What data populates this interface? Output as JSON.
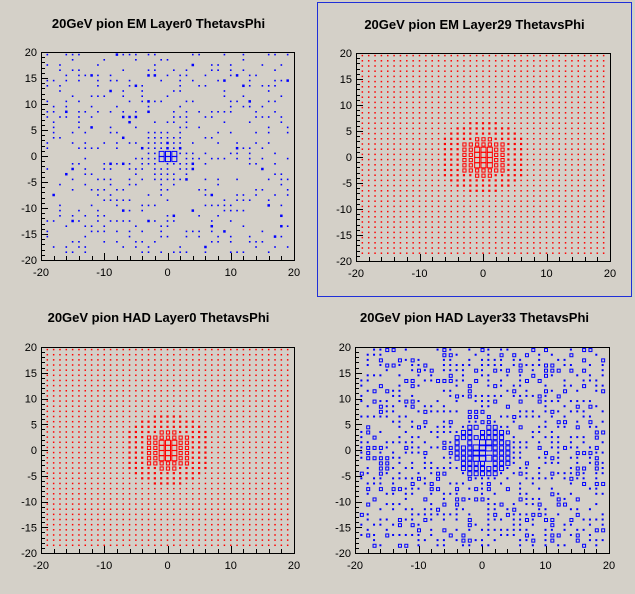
{
  "pads": [
    {
      "title": "20GeV pion EM Layer0 ThetavsPhi",
      "selected": false,
      "chart_data": {
        "type": "scatter",
        "style": "box",
        "color": "#0000ff",
        "density": "sparse",
        "xlim": [
          -20,
          20
        ],
        "ylim": [
          -20,
          20
        ],
        "xticks": [
          -20,
          -10,
          0,
          10,
          20
        ],
        "yticks": [
          -20,
          -15,
          -10,
          -5,
          0,
          5,
          10,
          15,
          20
        ],
        "grid": false
      }
    },
    {
      "title": "20GeV pion EM Layer29 ThetavsPhi",
      "selected": true,
      "chart_data": {
        "type": "scatter",
        "style": "box",
        "color": "#ff0000",
        "density": "full",
        "xlim": [
          -20,
          20
        ],
        "ylim": [
          -20,
          20
        ],
        "xticks": [
          -20,
          -10,
          0,
          10,
          20
        ],
        "yticks": [
          -20,
          -15,
          -10,
          -5,
          0,
          5,
          10,
          15,
          20
        ],
        "grid": false
      }
    },
    {
      "title": "20GeV pion HAD Layer0 ThetavsPhi",
      "selected": false,
      "chart_data": {
        "type": "scatter",
        "style": "box",
        "color": "#ff0000",
        "density": "full",
        "xlim": [
          -20,
          20
        ],
        "ylim": [
          -20,
          20
        ],
        "xticks": [
          -20,
          -10,
          0,
          10,
          20
        ],
        "yticks": [
          -20,
          -15,
          -10,
          -5,
          0,
          5,
          10,
          15,
          20
        ],
        "grid": false
      }
    },
    {
      "title": "20GeV pion HAD Layer33 ThetavsPhi",
      "selected": false,
      "chart_data": {
        "type": "scatter",
        "style": "box",
        "color": "#0000ff",
        "density": "medium",
        "xlim": [
          -20,
          20
        ],
        "ylim": [
          -20,
          20
        ],
        "xticks": [
          -20,
          -10,
          0,
          10,
          20
        ],
        "yticks": [
          -20,
          -15,
          -10,
          -5,
          0,
          5,
          10,
          15,
          20
        ],
        "grid": false
      }
    }
  ]
}
